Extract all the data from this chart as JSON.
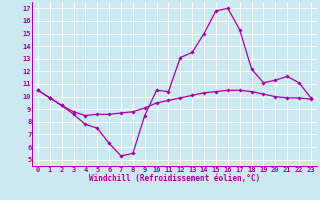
{
  "xlabel": "Windchill (Refroidissement éolien,°C)",
  "bg_color": "#cce8f0",
  "line_color": "#aa00aa",
  "xlim": [
    -0.5,
    23.5
  ],
  "ylim": [
    4.5,
    17.5
  ],
  "xticks": [
    0,
    1,
    2,
    3,
    4,
    5,
    6,
    7,
    8,
    9,
    10,
    11,
    12,
    13,
    14,
    15,
    16,
    17,
    18,
    19,
    20,
    21,
    22,
    23
  ],
  "yticks": [
    5,
    6,
    7,
    8,
    9,
    10,
    11,
    12,
    13,
    14,
    15,
    16,
    17
  ],
  "line1_x": [
    0,
    1,
    2,
    3,
    4,
    5,
    6,
    7,
    8,
    9,
    10,
    11,
    12,
    13,
    14,
    15,
    16,
    17,
    18,
    19,
    20,
    21,
    22,
    23
  ],
  "line1_y": [
    10.5,
    9.9,
    9.3,
    8.6,
    7.8,
    7.5,
    6.3,
    5.3,
    5.5,
    8.5,
    10.5,
    10.4,
    13.1,
    13.5,
    15.0,
    16.8,
    17.0,
    15.3,
    12.2,
    11.1,
    11.3,
    11.6,
    11.1,
    9.9
  ],
  "line2_x": [
    0,
    1,
    2,
    3,
    4,
    5,
    6,
    7,
    8,
    9,
    10,
    11,
    12,
    13,
    14,
    15,
    16,
    17,
    18,
    19,
    20,
    21,
    22,
    23
  ],
  "line2_y": [
    10.5,
    9.9,
    9.3,
    8.8,
    8.5,
    8.6,
    8.6,
    8.7,
    8.8,
    9.1,
    9.5,
    9.7,
    9.9,
    10.1,
    10.3,
    10.4,
    10.5,
    10.5,
    10.4,
    10.2,
    10.0,
    9.9,
    9.9,
    9.8
  ],
  "tick_fontsize": 5.0,
  "xlabel_fontsize": 5.5,
  "marker": "D",
  "markersize": 1.8,
  "linewidth": 0.9
}
